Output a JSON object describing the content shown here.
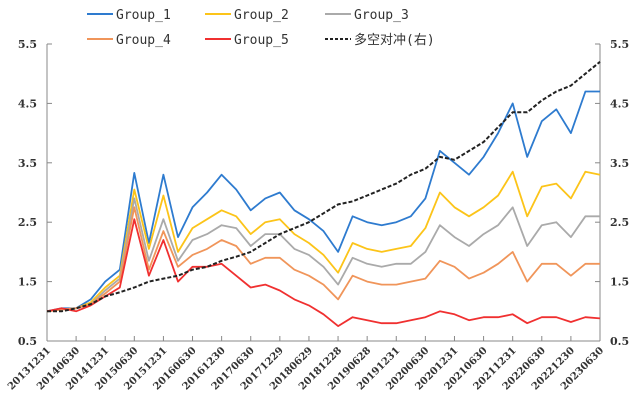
{
  "chart_data": {
    "type": "line",
    "title": "",
    "xlabel": "",
    "ylabel": "",
    "ylim": [
      0.5,
      5.5
    ],
    "y2lim": [
      0.5,
      5.5
    ],
    "yticks": [
      "0.5",
      "1.5",
      "2.5",
      "3.5",
      "4.5",
      "5.5"
    ],
    "y2ticks": [
      "0.5",
      "1.5",
      "2.5",
      "3.5",
      "4.5",
      "5.5"
    ],
    "grid": false,
    "legend_position": "top",
    "xtick_labels": [
      "20131231",
      "20140630",
      "20141231",
      "20150630",
      "20151231",
      "20160630",
      "20161230",
      "20170630",
      "20171229",
      "20180629",
      "20181228",
      "20190628",
      "20191231",
      "20200630",
      "20201231",
      "20210630",
      "20211231",
      "20220630",
      "20221230",
      "20230630"
    ],
    "x": [
      "2013-12",
      "2014-03",
      "2014-06",
      "2014-09",
      "2014-12",
      "2015-03",
      "2015-06",
      "2015-09",
      "2015-12",
      "2016-03",
      "2016-06",
      "2016-09",
      "2016-12",
      "2017-03",
      "2017-06",
      "2017-09",
      "2017-12",
      "2018-03",
      "2018-06",
      "2018-09",
      "2018-12",
      "2019-03",
      "2019-06",
      "2019-09",
      "2019-12",
      "2020-03",
      "2020-06",
      "2020-09",
      "2020-12",
      "2021-03",
      "2021-06",
      "2021-09",
      "2021-12",
      "2022-03",
      "2022-06",
      "2022-09",
      "2022-12",
      "2023-03",
      "2023-06"
    ],
    "series": [
      {
        "name": "Group_1",
        "color": "#2e7bcf",
        "style": "solid",
        "axis": "left",
        "values": [
          1.0,
          1.05,
          1.05,
          1.2,
          1.5,
          1.7,
          3.33,
          2.15,
          3.3,
          2.25,
          2.75,
          3.0,
          3.3,
          3.05,
          2.7,
          2.9,
          3.0,
          2.7,
          2.55,
          2.35,
          2.0,
          2.6,
          2.5,
          2.45,
          2.5,
          2.6,
          2.9,
          3.7,
          3.5,
          3.3,
          3.6,
          4.0,
          4.5,
          3.6,
          4.2,
          4.4,
          4.0,
          4.7,
          4.7
        ]
      },
      {
        "name": "Group_2",
        "color": "#fcc419",
        "style": "solid",
        "axis": "left",
        "values": [
          1.0,
          1.03,
          1.05,
          1.15,
          1.4,
          1.6,
          3.05,
          2.05,
          2.95,
          2.0,
          2.4,
          2.55,
          2.7,
          2.6,
          2.3,
          2.5,
          2.55,
          2.3,
          2.15,
          1.95,
          1.65,
          2.15,
          2.05,
          2.0,
          2.05,
          2.1,
          2.4,
          3.0,
          2.75,
          2.6,
          2.75,
          2.95,
          3.35,
          2.6,
          3.1,
          3.15,
          2.9,
          3.35,
          3.3
        ]
      },
      {
        "name": "Group_3",
        "color": "#aaaaaa",
        "style": "solid",
        "axis": "left",
        "values": [
          1.0,
          1.03,
          1.05,
          1.12,
          1.35,
          1.55,
          2.9,
          1.85,
          2.55,
          1.85,
          2.2,
          2.3,
          2.45,
          2.4,
          2.1,
          2.3,
          2.3,
          2.05,
          1.95,
          1.75,
          1.45,
          1.9,
          1.8,
          1.75,
          1.8,
          1.8,
          2.0,
          2.45,
          2.25,
          2.1,
          2.3,
          2.45,
          2.75,
          2.1,
          2.45,
          2.5,
          2.25,
          2.6,
          2.6
        ]
      },
      {
        "name": "Group_4",
        "color": "#f0955a",
        "style": "solid",
        "axis": "left",
        "values": [
          1.0,
          1.03,
          1.05,
          1.12,
          1.3,
          1.5,
          2.75,
          1.7,
          2.35,
          1.75,
          1.95,
          2.05,
          2.2,
          2.1,
          1.8,
          1.9,
          1.9,
          1.7,
          1.6,
          1.45,
          1.2,
          1.6,
          1.5,
          1.45,
          1.45,
          1.5,
          1.55,
          1.85,
          1.75,
          1.55,
          1.65,
          1.8,
          2.0,
          1.5,
          1.8,
          1.8,
          1.6,
          1.8,
          1.8
        ]
      },
      {
        "name": "Group_5",
        "color": "#f03030",
        "style": "solid",
        "axis": "left",
        "values": [
          1.0,
          1.05,
          1.0,
          1.1,
          1.25,
          1.4,
          2.55,
          1.6,
          2.2,
          1.5,
          1.75,
          1.75,
          1.8,
          1.6,
          1.4,
          1.45,
          1.35,
          1.2,
          1.1,
          0.95,
          0.75,
          0.9,
          0.85,
          0.8,
          0.8,
          0.85,
          0.9,
          1.0,
          0.95,
          0.85,
          0.9,
          0.9,
          0.95,
          0.8,
          0.9,
          0.9,
          0.82,
          0.9,
          0.88
        ]
      },
      {
        "name": "多空对冲(右)",
        "color": "#222222",
        "style": "dashed",
        "axis": "right",
        "values": [
          1.0,
          1.0,
          1.05,
          1.12,
          1.25,
          1.32,
          1.4,
          1.5,
          1.55,
          1.6,
          1.7,
          1.75,
          1.85,
          1.92,
          2.0,
          2.15,
          2.3,
          2.4,
          2.5,
          2.65,
          2.8,
          2.85,
          2.95,
          3.05,
          3.15,
          3.3,
          3.4,
          3.6,
          3.55,
          3.7,
          3.85,
          4.1,
          4.35,
          4.35,
          4.55,
          4.7,
          4.8,
          5.0,
          5.2
        ]
      }
    ]
  }
}
